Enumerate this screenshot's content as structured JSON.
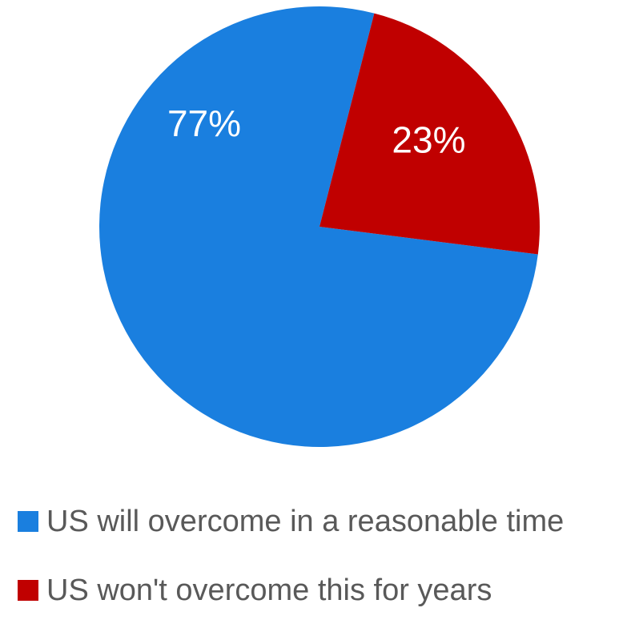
{
  "chart_data": {
    "type": "pie",
    "title": "",
    "slices": [
      {
        "name": "US will overcome in a reasonable time",
        "value": 77,
        "label": "77%",
        "color": "#1a7fdf"
      },
      {
        "name": "US won't overcome this for years",
        "value": 23,
        "label": "23%",
        "color": "#c00000"
      }
    ],
    "legend_position": "bottom-left"
  }
}
